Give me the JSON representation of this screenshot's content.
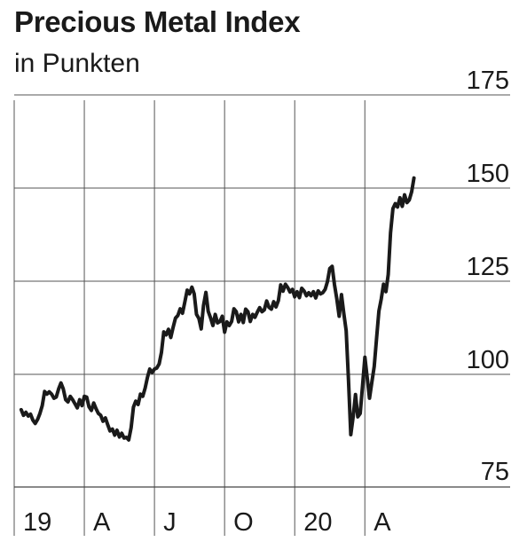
{
  "header": {
    "title": "Precious Metal Index",
    "subtitle": "in Punkten"
  },
  "chart_data": {
    "type": "line",
    "title": "Precious Metal Index",
    "subtitle": "in Punkten",
    "ylim": [
      75,
      175
    ],
    "y_ticks": [
      {
        "value": 175,
        "label": "175"
      },
      {
        "value": 150,
        "label": "150"
      },
      {
        "value": 125,
        "label": "125"
      },
      {
        "value": 100,
        "label": "100"
      },
      {
        "value": 75,
        "label": "75"
      }
    ],
    "x_ticks": [
      {
        "value": 0,
        "label": "19"
      },
      {
        "value": 3,
        "label": "A"
      },
      {
        "value": 6,
        "label": "J"
      },
      {
        "value": 9,
        "label": "O"
      },
      {
        "value": 12,
        "label": "20"
      },
      {
        "value": 15,
        "label": "A"
      }
    ],
    "xlim": [
      0,
      18.8
    ],
    "grid": true,
    "line_color": "#1a1a1a",
    "series": [
      {
        "x": [
          0.3,
          0.4,
          0.5,
          0.6,
          0.7,
          0.8,
          0.9,
          1.0,
          1.1,
          1.2,
          1.3,
          1.4,
          1.5,
          1.6,
          1.7,
          1.8,
          1.9,
          2.0,
          2.1,
          2.2,
          2.3,
          2.4,
          2.5,
          2.6,
          2.7,
          2.8,
          2.9,
          3.0,
          3.1,
          3.2,
          3.3,
          3.4,
          3.5,
          3.6,
          3.7,
          3.8,
          3.9,
          4.0,
          4.1,
          4.2,
          4.3,
          4.4,
          4.5,
          4.6,
          4.7,
          4.8,
          4.9,
          5.0,
          5.1,
          5.2,
          5.3,
          5.4,
          5.5,
          5.6,
          5.7,
          5.8,
          5.9,
          6.0,
          6.1,
          6.2,
          6.3,
          6.4,
          6.5,
          6.6,
          6.7,
          6.8,
          6.9,
          7.0,
          7.1,
          7.2,
          7.3,
          7.4,
          7.5,
          7.6,
          7.7,
          7.8,
          7.9,
          8.0,
          8.1,
          8.2,
          8.3,
          8.4,
          8.5,
          8.6,
          8.7,
          8.8,
          8.9,
          9.0,
          9.1,
          9.2,
          9.3,
          9.4,
          9.5,
          9.6,
          9.7,
          9.8,
          9.9,
          10.0,
          10.1,
          10.2,
          10.3,
          10.4,
          10.5,
          10.6,
          10.7,
          10.8,
          10.9,
          11.0,
          11.1,
          11.2,
          11.3,
          11.4,
          11.5,
          11.6,
          11.7,
          11.8,
          11.9,
          12.0,
          12.1,
          12.2,
          12.3,
          12.4,
          12.5,
          12.6,
          12.7,
          12.8,
          12.9,
          13.0,
          13.1,
          13.2,
          13.3,
          13.4,
          13.5,
          13.6,
          13.7,
          13.8,
          13.9,
          14.0,
          14.1,
          14.2,
          14.3,
          14.4,
          14.5,
          14.6,
          14.7,
          14.8,
          14.9,
          15.0,
          15.1,
          15.2,
          15.3,
          15.4,
          15.5,
          15.6,
          15.7,
          15.8,
          15.9,
          16.0,
          16.1,
          16.2,
          16.3,
          16.4,
          16.5,
          16.6,
          16.7,
          16.8,
          16.9,
          17.0,
          17.1
        ],
        "y": [
          90.5,
          89.0,
          89.8,
          88.8,
          89.3,
          87.7,
          86.8,
          87.9,
          89.5,
          91.6,
          95.4,
          94.7,
          95.3,
          94.7,
          93.6,
          93.9,
          96.1,
          97.7,
          96.1,
          93.2,
          92.6,
          94.1,
          93.2,
          92.1,
          91.0,
          93.2,
          91.6,
          94.1,
          93.9,
          91.3,
          90.3,
          92.3,
          90.8,
          89.5,
          89.0,
          87.4,
          88.3,
          86.5,
          84.8,
          85.3,
          83.7,
          85.0,
          83.2,
          84.2,
          82.9,
          83.1,
          82.4,
          85.7,
          91.2,
          92.8,
          91.9,
          94.7,
          94.1,
          96.3,
          99.2,
          101.4,
          100.5,
          101.4,
          101.7,
          102.8,
          105.9,
          111.4,
          110.6,
          112.1,
          109.9,
          112.7,
          115.1,
          115.8,
          117.6,
          116.4,
          119.5,
          122.6,
          121.6,
          123.4,
          121.6,
          116.1,
          115.0,
          112.2,
          118.5,
          122.0,
          116.9,
          115.2,
          113.1,
          116.1,
          113.8,
          114.2,
          115.6,
          111.3,
          114.1,
          113.1,
          114.2,
          117.6,
          116.8,
          114.1,
          116.1,
          113.9,
          117.5,
          116.8,
          114.2,
          116.1,
          115.3,
          116.7,
          117.9,
          116.8,
          117.3,
          119.7,
          118.0,
          117.5,
          119.5,
          118.1,
          119.8,
          124.0,
          122.3,
          124.2,
          123.3,
          122.1,
          122.8,
          120.8,
          122.2,
          120.6,
          123.1,
          122.4,
          121.1,
          121.9,
          121.1,
          122.2,
          120.5,
          122.4,
          121.6,
          121.9,
          122.8,
          124.9,
          128.4,
          129.0,
          124.1,
          120.3,
          115.6,
          121.4,
          116.4,
          111.7,
          98.5,
          83.8,
          88.7,
          94.6,
          88.6,
          89.5,
          96.8,
          104.6,
          99.1,
          93.6,
          98.0,
          102.1,
          109.5,
          117.0,
          120.2,
          124.2,
          122.2,
          126.8,
          138.0,
          144.5,
          145.8,
          144.9,
          147.4,
          145.1,
          148.2,
          146.1,
          146.8,
          149.0,
          152.7
        ]
      }
    ]
  }
}
